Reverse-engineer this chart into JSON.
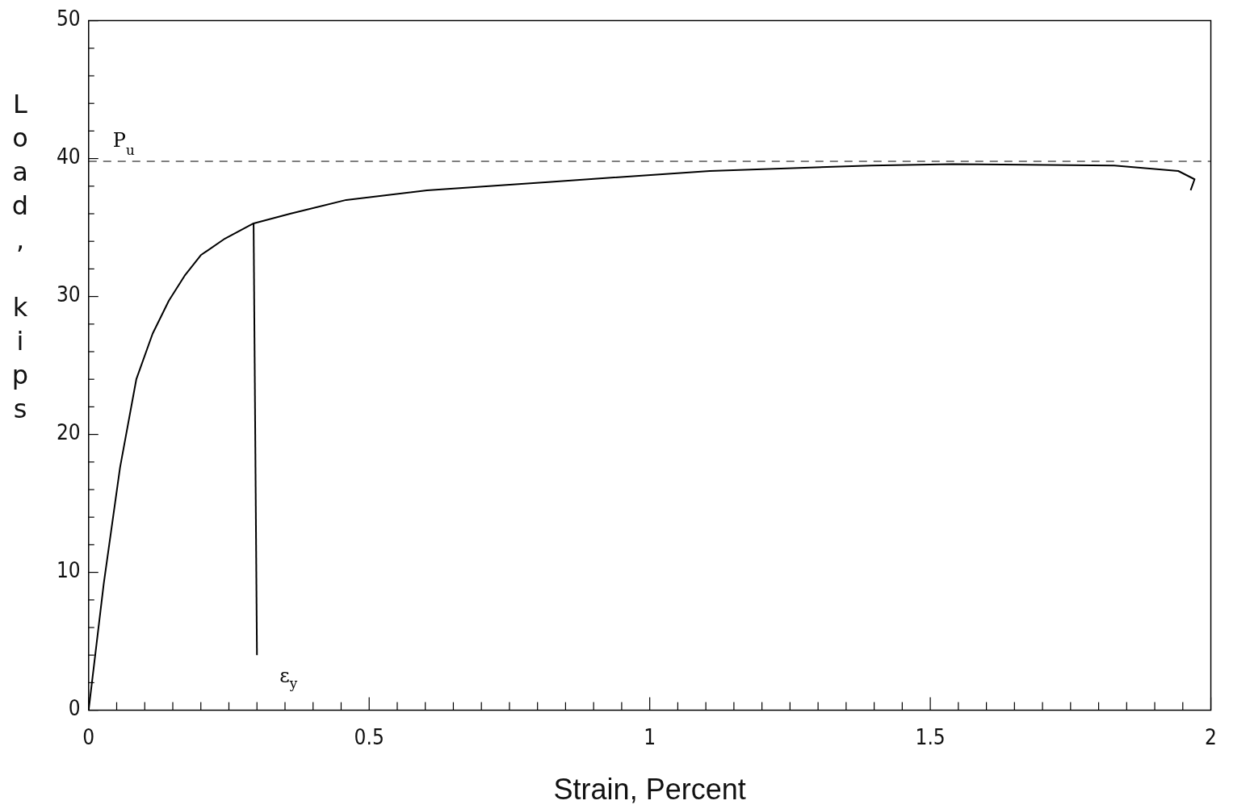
{
  "chart_data": {
    "type": "line",
    "xlabel": "Strain, Percent",
    "ylabel": "Load, kips",
    "xlim": [
      0,
      2
    ],
    "ylim": [
      0,
      50
    ],
    "xticks": [
      0,
      {
        "value": 0.05,
        "label": null
      },
      {
        "value": 0.1,
        "label": null
      },
      {
        "value": 0.15,
        "label": null
      },
      {
        "value": 0.2,
        "label": null
      },
      {
        "value": 0.25,
        "label": null
      },
      {
        "value": 0.3,
        "label": null
      },
      {
        "value": 0.35,
        "label": null
      },
      {
        "value": 0.4,
        "label": null
      },
      {
        "value": 0.45,
        "label": null
      },
      0.5,
      {
        "value": 0.55,
        "label": null
      },
      {
        "value": 0.6,
        "label": null
      },
      {
        "value": 0.65,
        "label": null
      },
      {
        "value": 0.7,
        "label": null
      },
      {
        "value": 0.75,
        "label": null
      },
      {
        "value": 0.8,
        "label": null
      },
      {
        "value": 0.85,
        "label": null
      },
      {
        "value": 0.9,
        "label": null
      },
      {
        "value": 0.95,
        "label": null
      },
      1,
      {
        "value": 1.05,
        "label": null
      },
      {
        "value": 1.1,
        "label": null
      },
      {
        "value": 1.15,
        "label": null
      },
      {
        "value": 1.2,
        "label": null
      },
      {
        "value": 1.25,
        "label": null
      },
      {
        "value": 1.3,
        "label": null
      },
      {
        "value": 1.35,
        "label": null
      },
      {
        "value": 1.4,
        "label": null
      },
      {
        "value": 1.45,
        "label": null
      },
      1.5,
      {
        "value": 1.55,
        "label": null
      },
      {
        "value": 1.6,
        "label": null
      },
      {
        "value": 1.65,
        "label": null
      },
      {
        "value": 1.7,
        "label": null
      },
      {
        "value": 1.75,
        "label": null
      },
      {
        "value": 1.8,
        "label": null
      },
      {
        "value": 1.85,
        "label": null
      },
      {
        "value": 1.9,
        "label": null
      },
      {
        "value": 1.95,
        "label": null
      },
      2
    ],
    "yticks": [
      0,
      {
        "value": 2,
        "label": null
      },
      {
        "value": 4,
        "label": null
      },
      {
        "value": 6,
        "label": null
      },
      {
        "value": 8,
        "label": null
      },
      10,
      {
        "value": 12,
        "label": null
      },
      {
        "value": 14,
        "label": null
      },
      {
        "value": 16,
        "label": null
      },
      {
        "value": 18,
        "label": null
      },
      20,
      {
        "value": 22,
        "label": null
      },
      {
        "value": 24,
        "label": null
      },
      {
        "value": 26,
        "label": null
      },
      {
        "value": 28,
        "label": null
      },
      30,
      {
        "value": 32,
        "label": null
      },
      {
        "value": 34,
        "label": null
      },
      {
        "value": 36,
        "label": null
      },
      {
        "value": 38,
        "label": null
      },
      40,
      {
        "value": 42,
        "label": null
      },
      {
        "value": 44,
        "label": null
      },
      {
        "value": 46,
        "label": null
      },
      {
        "value": 48,
        "label": null
      },
      50
    ],
    "grid": false,
    "legend": false,
    "marker": "none",
    "series": [
      {
        "color": "#000000",
        "x": [
          0,
          0.027,
          0.056,
          0.085,
          0.114,
          0.143,
          0.171,
          0.2,
          0.243,
          0.294,
          0.359,
          0.459,
          0.603,
          0.819,
          1.107,
          1.395,
          1.54,
          1.828,
          1.942,
          1.971,
          1.964
        ],
        "values": [
          0,
          9.2,
          17.6,
          24,
          27.3,
          29.7,
          31.5,
          33,
          34.2,
          35.3,
          36,
          37,
          37.7,
          38.3,
          39.1,
          39.5,
          39.6,
          39.5,
          39.1,
          38.5,
          37.7
        ]
      },
      {
        "color": "#000000",
        "x": [
          0.294,
          0.3
        ],
        "values": [
          35.3,
          4
        ]
      }
    ],
    "ref_lines": [
      {
        "axis": "y",
        "value": 39.8,
        "label": "P$_{u}$",
        "line_style": "dashed",
        "color": "#000000"
      }
    ],
    "annotations": [
      {
        "text": "ε$_{y}$",
        "x": 0.3,
        "y": 4
      }
    ]
  }
}
